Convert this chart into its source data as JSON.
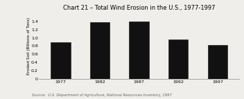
{
  "title": "Chart 21 – Total Wind Erosion in the U.S., 1977-1997",
  "categories": [
    "1977",
    "1982",
    "1987",
    "1992",
    "1997"
  ],
  "values": [
    0.9,
    1.37,
    1.4,
    0.96,
    0.83
  ],
  "bar_color": "#111111",
  "bar_edge_color": "#111111",
  "ylabel": "Eroded Soil (Billions of Tons)",
  "ylim": [
    0,
    1.6
  ],
  "yticks": [
    0,
    0.2,
    0.4,
    0.6,
    0.8,
    1.0,
    1.2,
    1.4
  ],
  "source_text": "Source:  U.S. Department of Agriculture, National Resources Inventory, 1997",
  "title_fontsize": 6.0,
  "label_fontsize": 4.2,
  "tick_fontsize": 4.5,
  "source_fontsize": 3.8,
  "background_color": "#f0eeea",
  "bar_width": 0.5
}
